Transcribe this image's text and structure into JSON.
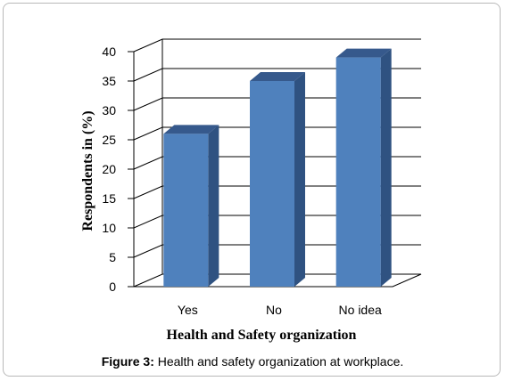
{
  "chart_data": {
    "type": "bar",
    "style": "3d-column",
    "categories": [
      "Yes",
      "No",
      "No idea"
    ],
    "values": [
      26,
      35,
      39
    ],
    "ylabel": "Respondents in (%)",
    "xlabel": "Health and Safety organization",
    "ylim": [
      0,
      40
    ],
    "yticks": [
      0,
      5,
      10,
      15,
      20,
      25,
      30,
      35,
      40
    ],
    "grid": true,
    "legend": "none",
    "colors": {
      "bar_front": "#4f81bd",
      "bar_side": "#2f5281",
      "bar_top": "#36598c",
      "grid": "#000000"
    }
  },
  "caption": {
    "label": "Figure 3:",
    "text": " Health and safety organization at workplace."
  }
}
